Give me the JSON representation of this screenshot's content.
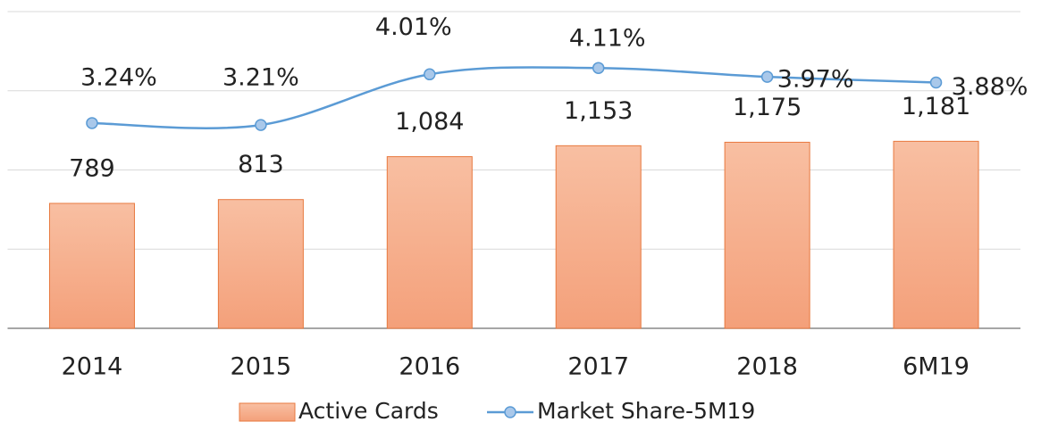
{
  "chart_data": {
    "type": "bar_line",
    "categories": [
      "2014",
      "2015",
      "2016",
      "2017",
      "2018",
      "6M19"
    ],
    "ylim": [
      0,
      2000
    ],
    "yticks": [
      0,
      500,
      1000,
      1500,
      2000
    ],
    "grid": true,
    "y2lim": [
      0,
      5
    ],
    "legend": "bottom",
    "series": [
      {
        "name": "Active Cards",
        "type": "bar",
        "color": "#f4ae8a",
        "edge": "#e8793f",
        "values": [
          789,
          813,
          1084,
          1153,
          1175,
          1181
        ],
        "value_labels": [
          "789",
          "813",
          "1,084",
          "1,153",
          "1,175",
          "1,181"
        ]
      },
      {
        "name": "Market Share-5M19",
        "type": "line",
        "axis": "y2",
        "color": "#5b9bd5",
        "marker_fill": "#a9c8ea",
        "values": [
          3.24,
          3.21,
          4.01,
          4.11,
          3.97,
          3.88
        ],
        "value_labels": [
          "3.24%",
          "3.21%",
          "4.01%",
          "4.11%",
          "3.97%",
          "3.88%"
        ]
      }
    ]
  }
}
